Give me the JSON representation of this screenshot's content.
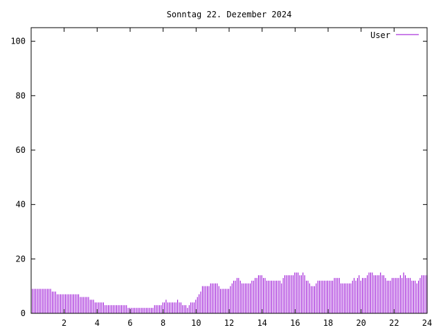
{
  "chart_data": {
    "type": "bar",
    "title": "Sonntag 22. Dezember 2024",
    "xlabel": "",
    "ylabel": "",
    "xlim": [
      0,
      24
    ],
    "ylim": [
      0,
      105
    ],
    "xticks": [
      "2",
      "4",
      "6",
      "8",
      "10",
      "12",
      "14",
      "16",
      "18",
      "20",
      "22",
      "24"
    ],
    "yticks": [
      "0",
      "20",
      "40",
      "60",
      "80",
      "100"
    ],
    "grid": false,
    "legend_position": "top-right",
    "series": [
      {
        "name": "User",
        "color": "#9400d3",
        "points": [
          [
            0.1,
            9
          ],
          [
            0.2,
            9
          ],
          [
            0.3,
            9
          ],
          [
            0.4,
            9
          ],
          [
            0.5,
            9
          ],
          [
            0.6,
            9
          ],
          [
            0.7,
            9
          ],
          [
            0.8,
            9
          ],
          [
            0.9,
            9
          ],
          [
            1.0,
            9
          ],
          [
            1.1,
            9
          ],
          [
            1.2,
            9
          ],
          [
            1.3,
            8
          ],
          [
            1.4,
            8
          ],
          [
            1.5,
            8
          ],
          [
            1.6,
            7
          ],
          [
            1.7,
            7
          ],
          [
            1.8,
            7
          ],
          [
            1.9,
            7
          ],
          [
            2.0,
            7
          ],
          [
            2.1,
            7
          ],
          [
            2.2,
            7
          ],
          [
            2.3,
            7
          ],
          [
            2.4,
            7
          ],
          [
            2.5,
            7
          ],
          [
            2.6,
            7
          ],
          [
            2.7,
            7
          ],
          [
            2.8,
            7
          ],
          [
            2.9,
            7
          ],
          [
            3.0,
            6
          ],
          [
            3.1,
            6
          ],
          [
            3.2,
            6
          ],
          [
            3.3,
            6
          ],
          [
            3.4,
            6
          ],
          [
            3.5,
            6
          ],
          [
            3.6,
            5
          ],
          [
            3.7,
            5
          ],
          [
            3.8,
            5
          ],
          [
            3.9,
            4
          ],
          [
            4.0,
            4
          ],
          [
            4.1,
            4
          ],
          [
            4.2,
            4
          ],
          [
            4.3,
            4
          ],
          [
            4.4,
            4
          ],
          [
            4.5,
            3
          ],
          [
            4.6,
            3
          ],
          [
            4.7,
            3
          ],
          [
            4.8,
            3
          ],
          [
            4.9,
            3
          ],
          [
            5.0,
            3
          ],
          [
            5.1,
            3
          ],
          [
            5.2,
            3
          ],
          [
            5.3,
            3
          ],
          [
            5.4,
            3
          ],
          [
            5.5,
            3
          ],
          [
            5.6,
            3
          ],
          [
            5.7,
            3
          ],
          [
            5.8,
            3
          ],
          [
            5.9,
            2
          ],
          [
            6.0,
            2
          ],
          [
            6.1,
            2
          ],
          [
            6.2,
            2
          ],
          [
            6.3,
            2
          ],
          [
            6.4,
            2
          ],
          [
            6.5,
            2
          ],
          [
            6.6,
            2
          ],
          [
            6.7,
            2
          ],
          [
            6.8,
            2
          ],
          [
            6.9,
            2
          ],
          [
            7.0,
            2
          ],
          [
            7.1,
            2
          ],
          [
            7.2,
            2
          ],
          [
            7.3,
            2
          ],
          [
            7.4,
            2
          ],
          [
            7.5,
            3
          ],
          [
            7.6,
            3
          ],
          [
            7.7,
            3
          ],
          [
            7.8,
            3
          ],
          [
            7.9,
            3
          ],
          [
            8.0,
            4
          ],
          [
            8.1,
            4
          ],
          [
            8.2,
            5
          ],
          [
            8.3,
            4
          ],
          [
            8.4,
            4
          ],
          [
            8.5,
            4
          ],
          [
            8.6,
            4
          ],
          [
            8.7,
            4
          ],
          [
            8.8,
            4
          ],
          [
            8.9,
            5
          ],
          [
            9.0,
            4
          ],
          [
            9.1,
            4
          ],
          [
            9.2,
            3
          ],
          [
            9.3,
            3
          ],
          [
            9.4,
            3
          ],
          [
            9.5,
            2
          ],
          [
            9.6,
            3
          ],
          [
            9.7,
            4
          ],
          [
            9.8,
            4
          ],
          [
            9.9,
            4
          ],
          [
            10.0,
            5
          ],
          [
            10.1,
            6
          ],
          [
            10.2,
            7
          ],
          [
            10.3,
            8
          ],
          [
            10.4,
            10
          ],
          [
            10.5,
            10
          ],
          [
            10.6,
            10
          ],
          [
            10.7,
            10
          ],
          [
            10.8,
            10
          ],
          [
            10.9,
            11
          ],
          [
            11.0,
            11
          ],
          [
            11.1,
            11
          ],
          [
            11.2,
            11
          ],
          [
            11.3,
            11
          ],
          [
            11.4,
            10
          ],
          [
            11.5,
            9
          ],
          [
            11.6,
            9
          ],
          [
            11.7,
            9
          ],
          [
            11.8,
            9
          ],
          [
            11.9,
            9
          ],
          [
            12.0,
            9
          ],
          [
            12.1,
            10
          ],
          [
            12.2,
            11
          ],
          [
            12.3,
            12
          ],
          [
            12.4,
            12
          ],
          [
            12.5,
            13
          ],
          [
            12.6,
            13
          ],
          [
            12.7,
            12
          ],
          [
            12.8,
            11
          ],
          [
            12.9,
            11
          ],
          [
            13.0,
            11
          ],
          [
            13.1,
            11
          ],
          [
            13.2,
            11
          ],
          [
            13.3,
            11
          ],
          [
            13.4,
            12
          ],
          [
            13.5,
            12
          ],
          [
            13.6,
            13
          ],
          [
            13.7,
            13
          ],
          [
            13.8,
            14
          ],
          [
            13.9,
            14
          ],
          [
            14.0,
            14
          ],
          [
            14.1,
            13
          ],
          [
            14.2,
            13
          ],
          [
            14.3,
            12
          ],
          [
            14.4,
            12
          ],
          [
            14.5,
            12
          ],
          [
            14.6,
            12
          ],
          [
            14.7,
            12
          ],
          [
            14.8,
            12
          ],
          [
            14.9,
            12
          ],
          [
            15.0,
            12
          ],
          [
            15.1,
            12
          ],
          [
            15.2,
            11
          ],
          [
            15.3,
            13
          ],
          [
            15.4,
            14
          ],
          [
            15.5,
            14
          ],
          [
            15.6,
            14
          ],
          [
            15.7,
            14
          ],
          [
            15.8,
            14
          ],
          [
            15.9,
            14
          ],
          [
            16.0,
            15
          ],
          [
            16.1,
            15
          ],
          [
            16.2,
            15
          ],
          [
            16.3,
            14
          ],
          [
            16.4,
            14
          ],
          [
            16.5,
            15
          ],
          [
            16.6,
            14
          ],
          [
            16.7,
            12
          ],
          [
            16.8,
            12
          ],
          [
            16.9,
            11
          ],
          [
            17.0,
            10
          ],
          [
            17.1,
            10
          ],
          [
            17.2,
            10
          ],
          [
            17.3,
            11
          ],
          [
            17.4,
            12
          ],
          [
            17.5,
            12
          ],
          [
            17.6,
            12
          ],
          [
            17.7,
            12
          ],
          [
            17.8,
            12
          ],
          [
            17.9,
            12
          ],
          [
            18.0,
            12
          ],
          [
            18.1,
            12
          ],
          [
            18.2,
            12
          ],
          [
            18.3,
            12
          ],
          [
            18.4,
            13
          ],
          [
            18.5,
            13
          ],
          [
            18.6,
            13
          ],
          [
            18.7,
            13
          ],
          [
            18.8,
            11
          ],
          [
            18.9,
            11
          ],
          [
            19.0,
            11
          ],
          [
            19.1,
            11
          ],
          [
            19.2,
            11
          ],
          [
            19.3,
            11
          ],
          [
            19.4,
            11
          ],
          [
            19.5,
            12
          ],
          [
            19.6,
            13
          ],
          [
            19.7,
            12
          ],
          [
            19.8,
            13
          ],
          [
            19.9,
            14
          ],
          [
            20.0,
            12
          ],
          [
            20.1,
            13
          ],
          [
            20.2,
            13
          ],
          [
            20.3,
            13
          ],
          [
            20.4,
            14
          ],
          [
            20.5,
            15
          ],
          [
            20.6,
            15
          ],
          [
            20.7,
            15
          ],
          [
            20.8,
            14
          ],
          [
            20.9,
            14
          ],
          [
            21.0,
            14
          ],
          [
            21.1,
            14
          ],
          [
            21.2,
            15
          ],
          [
            21.3,
            14
          ],
          [
            21.4,
            14
          ],
          [
            21.5,
            13
          ],
          [
            21.6,
            12
          ],
          [
            21.7,
            12
          ],
          [
            21.8,
            12
          ],
          [
            21.9,
            13
          ],
          [
            22.0,
            13
          ],
          [
            22.1,
            13
          ],
          [
            22.2,
            13
          ],
          [
            22.3,
            13
          ],
          [
            22.4,
            14
          ],
          [
            22.5,
            13
          ],
          [
            22.6,
            15
          ],
          [
            22.7,
            14
          ],
          [
            22.8,
            13
          ],
          [
            22.9,
            13
          ],
          [
            23.0,
            13
          ],
          [
            23.1,
            12
          ],
          [
            23.2,
            12
          ],
          [
            23.3,
            12
          ],
          [
            23.4,
            11
          ],
          [
            23.5,
            12
          ],
          [
            23.6,
            13
          ],
          [
            23.7,
            14
          ],
          [
            23.8,
            14
          ],
          [
            23.9,
            14
          ],
          [
            24.0,
            14
          ]
        ]
      }
    ]
  }
}
